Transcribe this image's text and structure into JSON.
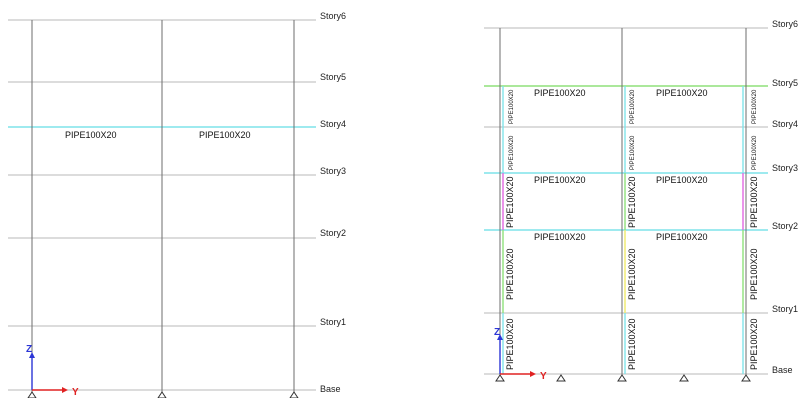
{
  "colors": {
    "grid": "#b9b9b9",
    "column": "#6e6e6e",
    "beam_cyan": "#7fe3ea",
    "green": "#8fe07a",
    "magenta": "#e067e0",
    "yellow": "#f0ea6a",
    "axis_z": "#2c36d6",
    "axis_y": "#e02222"
  },
  "left_view": {
    "stories": [
      "Story6",
      "Story5",
      "Story4",
      "Story3",
      "Story2",
      "Story1",
      "Base"
    ],
    "beams": [
      {
        "label": "PIPE100X20"
      },
      {
        "label": "PIPE100X20"
      }
    ],
    "axis": {
      "z": "Z",
      "y": "Y"
    }
  },
  "right_view": {
    "stories": [
      "Story6",
      "Story5",
      "Story4",
      "Story3",
      "Story2",
      "Story1",
      "Base"
    ],
    "beam_labels": [
      "PIPE100X20",
      "PIPE100X20",
      "PIPE100X20",
      "PIPE100X20",
      "PIPE100X20",
      "PIPE100X20"
    ],
    "brace_labels": {
      "upper_small": "PIPE100X20",
      "mid": "PIPE100X20",
      "lower": "PIPE100X20",
      "base": "PIPE100X20"
    },
    "axis": {
      "z": "Z",
      "y": "Y"
    }
  }
}
